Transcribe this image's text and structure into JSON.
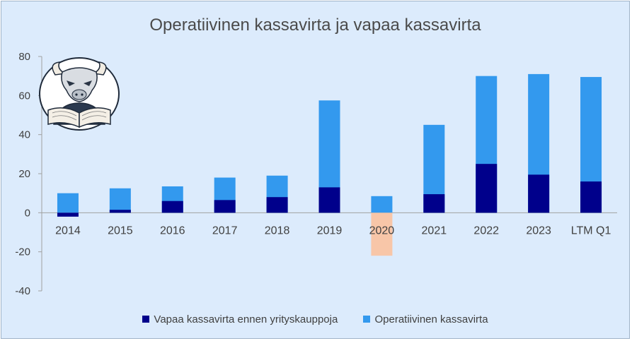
{
  "chart_data": {
    "type": "bar",
    "title": "Operatiivinen kassavirta ja vapaa kassavirta",
    "xlabel": "",
    "ylabel": "",
    "categories": [
      "2014",
      "2015",
      "2016",
      "2017",
      "2018",
      "2019",
      "2020",
      "2021",
      "2022",
      "2023",
      "LTM Q1"
    ],
    "series": [
      {
        "name": "Vapaa kassavirta ennen yrityskauppoja",
        "color": "#00008b",
        "values": [
          -2,
          1.5,
          6,
          6.5,
          8,
          13,
          -22,
          9.5,
          25,
          19.5,
          16
        ]
      },
      {
        "name": "Operatiivinen kassavirta",
        "color": "#3399ee",
        "values": [
          10,
          12.5,
          13.5,
          18,
          19,
          57.5,
          8.5,
          45,
          70,
          71,
          69.5
        ]
      }
    ],
    "highlight": {
      "category": "2020",
      "series": "Vapaa kassavirta ennen yrityskauppoja",
      "color": "#f8c6a8"
    },
    "ylim": [
      -40,
      80
    ],
    "yticks": [
      -40,
      -20,
      0,
      20,
      40,
      60,
      80
    ],
    "grid": false,
    "legend_position": "bottom"
  },
  "logo": {
    "name": "bull-reading-book-logo"
  },
  "colors": {
    "background": "#dcebfc",
    "axis": "#a0a0a0"
  }
}
